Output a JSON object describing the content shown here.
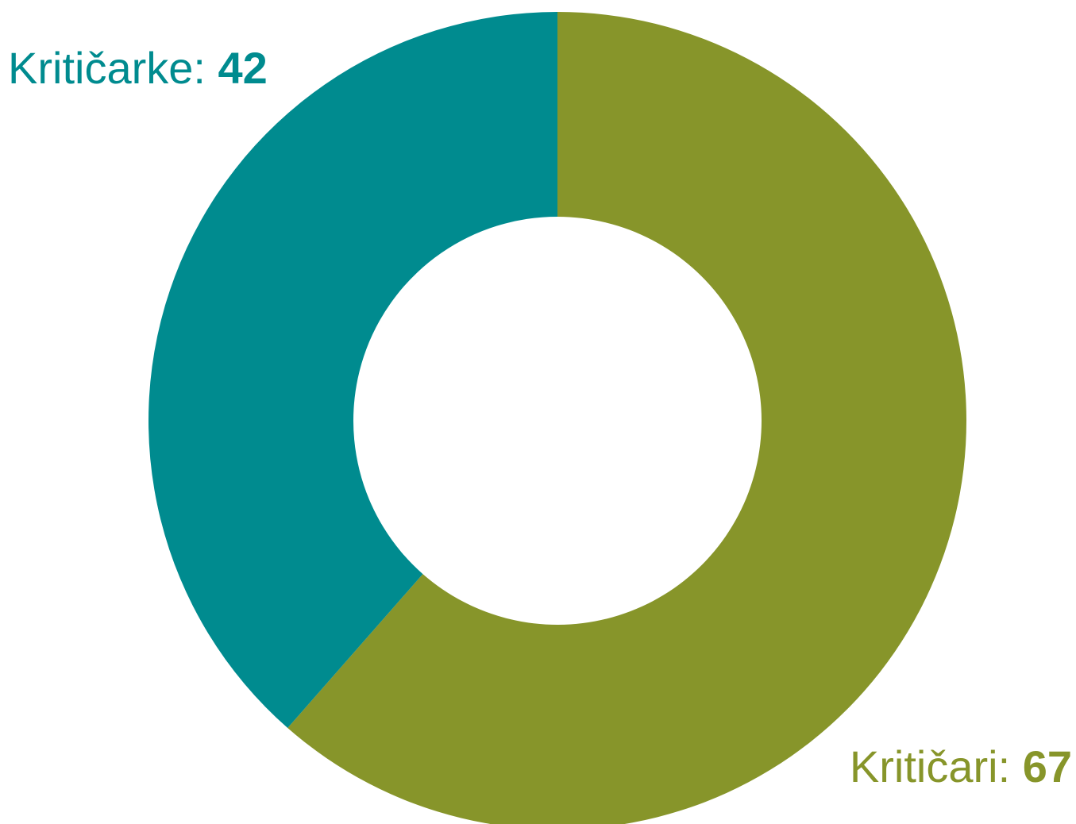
{
  "chart_data": {
    "type": "donut",
    "categories": [
      "Kritičari:",
      "Kritičarke:"
    ],
    "values": [
      67,
      42
    ],
    "colors": [
      "#87952a",
      "#008b8f"
    ]
  }
}
